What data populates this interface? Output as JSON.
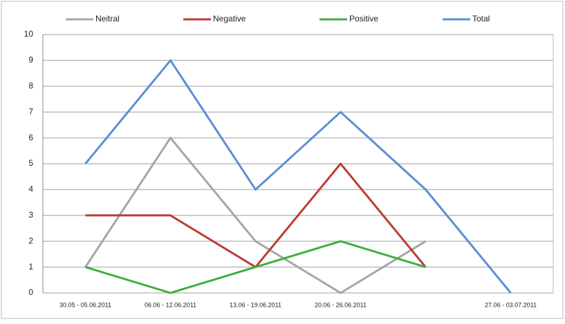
{
  "chart_data": {
    "type": "line",
    "categories": [
      "30.05 - 05.06.2011",
      "06.06 - 12.06.2011",
      "13.06 - 19.06.2011",
      "20.06 - 26.06.2011",
      null,
      "27.06 - 03.07.2011"
    ],
    "series": [
      {
        "name": "Neitral",
        "color": "#a6a6a6",
        "values": [
          1,
          6,
          2,
          0,
          2,
          null
        ]
      },
      {
        "name": "Negative",
        "color": "#be3b35",
        "values": [
          3,
          3,
          1,
          5,
          1,
          null
        ]
      },
      {
        "name": "Positive",
        "color": "#3fae3f",
        "values": [
          1,
          0,
          1,
          2,
          1,
          null
        ]
      },
      {
        "name": "Total",
        "color": "#5b8ed6",
        "values": [
          5,
          9,
          4,
          7,
          4,
          0
        ]
      }
    ],
    "ylim": [
      0,
      10
    ],
    "yticks": [
      0,
      1,
      2,
      3,
      4,
      5,
      6,
      7,
      8,
      9,
      10
    ],
    "grid": true,
    "legend": "top"
  }
}
